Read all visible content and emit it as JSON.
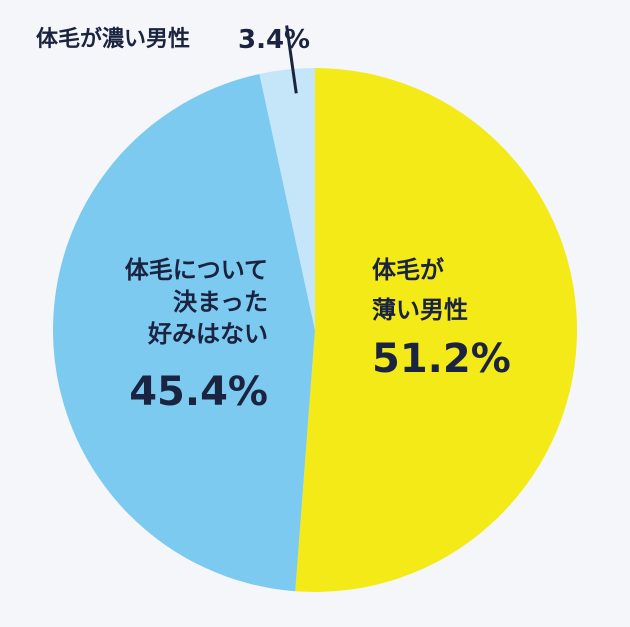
{
  "chart_data": {
    "type": "pie",
    "start_angle_deg": 0,
    "direction": "clockwise",
    "slices": [
      {
        "name_lines": [
          "体毛が",
          "薄い男性"
        ],
        "value": 51.2,
        "value_label": "51.2%",
        "color": "#f4ea17"
      },
      {
        "name_lines": [
          "体毛について",
          "決まった",
          "好みはない"
        ],
        "value": 45.4,
        "value_label": "45.4%",
        "color": "#7dcaf0"
      },
      {
        "name_lines": [
          "体毛が濃い男性"
        ],
        "value": 3.4,
        "value_label": "3.4%",
        "color": "#c4e6f8"
      }
    ]
  }
}
